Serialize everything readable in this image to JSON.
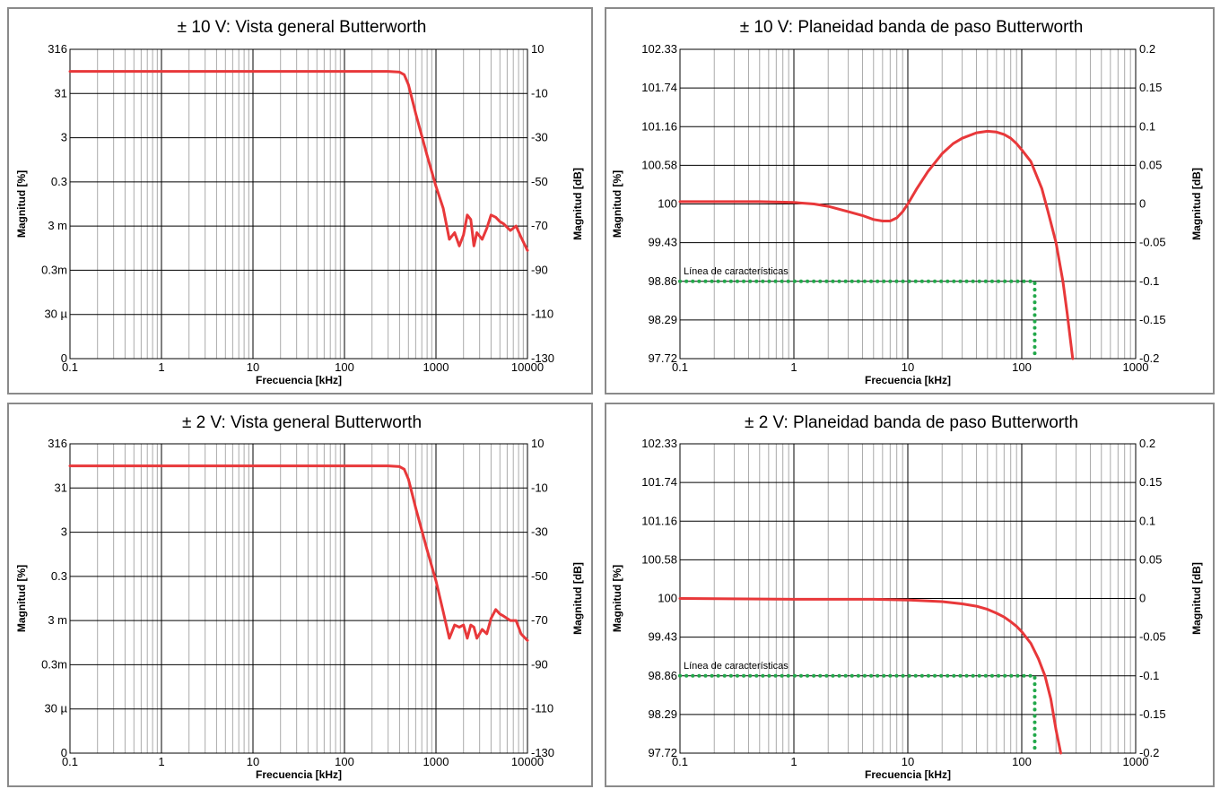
{
  "colors": {
    "response": "#e8383a",
    "characteristic": "#22a84a",
    "grid_major": "#000000",
    "grid_minor": "#aaaaaa"
  },
  "chart_data": [
    {
      "type": "line",
      "title": "± 10 V: Vista general Butterworth",
      "xlabel": "Frecuencia [kHz]",
      "ylabel": "Magnitud [%]",
      "y2label": "Magnitud [dB]",
      "x_scale": "log",
      "xlim": [
        0.1,
        10000
      ],
      "xticks": [
        "0.1",
        "1",
        "10",
        "100",
        "1000",
        "10000"
      ],
      "ylim_db": [
        -130,
        10
      ],
      "yticks_left": [
        "316",
        "31",
        "3",
        "0.3",
        "3 m",
        "0.3m",
        "30 µ",
        "0"
      ],
      "yticks_right": [
        "10",
        "-10",
        "-30",
        "-50",
        "-70",
        "-90",
        "-110",
        "-130"
      ],
      "grid": true,
      "series": [
        {
          "x": [
            0.1,
            1,
            10,
            100,
            300,
            400,
            450,
            500,
            600,
            800,
            1000,
            1200,
            1400,
            1600,
            1800,
            2000,
            2200,
            2400,
            2600,
            2800,
            3200,
            3600,
            4000,
            4500,
            5000,
            5500,
            6500,
            7500,
            8500,
            10000
          ],
          "y": [
            0,
            0,
            0,
            0,
            0,
            -0.3,
            -1.5,
            -6,
            -19,
            -38,
            -52,
            -62,
            -76,
            -73,
            -79,
            -74,
            -65,
            -67,
            -79,
            -73,
            -76,
            -71,
            -65,
            -66,
            -68,
            -69,
            -72,
            -70,
            -75,
            -81
          ]
        }
      ]
    },
    {
      "type": "line",
      "title": "± 10 V: Planeidad banda de paso Butterworth",
      "xlabel": "Frecuencia [kHz]",
      "ylabel": "Magnitud [%]",
      "y2label": "Magnitud [dB]",
      "x_scale": "log",
      "xlim": [
        0.1,
        1000
      ],
      "xticks": [
        "0.1",
        "1",
        "10",
        "100",
        "1000"
      ],
      "ylim_db": [
        -0.2,
        0.2
      ],
      "yticks_left": [
        "102.33",
        "101.74",
        "101.16",
        "100.58",
        "100",
        "99.43",
        "98.86",
        "98.29",
        "97.72"
      ],
      "yticks_right": [
        "0.2",
        "0.15",
        "0.1",
        "0.05",
        "0",
        "-0.05",
        "-0.1",
        "-0.15",
        "-0.2"
      ],
      "grid": true,
      "annotation": "Línea de características",
      "characteristic_line": {
        "db": -0.1,
        "f_khz": 130
      },
      "series": [
        {
          "x": [
            0.1,
            0.5,
            1,
            1.5,
            2,
            3,
            4,
            5,
            6,
            7,
            8,
            9,
            10,
            12,
            15,
            20,
            25,
            30,
            40,
            50,
            60,
            70,
            80,
            90,
            100,
            120,
            150,
            170,
            200,
            230,
            250,
            280
          ],
          "y": [
            0.003,
            0.003,
            0.002,
            0.0,
            -0.003,
            -0.01,
            -0.015,
            -0.02,
            -0.022,
            -0.022,
            -0.018,
            -0.01,
            0.0,
            0.02,
            0.042,
            0.065,
            0.078,
            0.085,
            0.092,
            0.094,
            0.093,
            0.09,
            0.085,
            0.078,
            0.07,
            0.055,
            0.02,
            -0.01,
            -0.05,
            -0.1,
            -0.14,
            -0.2
          ]
        }
      ]
    },
    {
      "type": "line",
      "title": "± 2 V: Vista general Butterworth",
      "xlabel": "Frecuencia [kHz]",
      "ylabel": "Magnitud [%]",
      "y2label": "Magnitud [dB]",
      "x_scale": "log",
      "xlim": [
        0.1,
        10000
      ],
      "xticks": [
        "0.1",
        "1",
        "10",
        "100",
        "1000",
        "10000"
      ],
      "ylim_db": [
        -130,
        10
      ],
      "yticks_left": [
        "316",
        "31",
        "3",
        "0.3",
        "3 m",
        "0.3m",
        "30 µ",
        "0"
      ],
      "yticks_right": [
        "10",
        "-10",
        "-30",
        "-50",
        "-70",
        "-90",
        "-110",
        "-130"
      ],
      "grid": true,
      "series": [
        {
          "x": [
            0.1,
            1,
            10,
            100,
            300,
            400,
            450,
            500,
            600,
            800,
            1000,
            1200,
            1400,
            1600,
            1800,
            2000,
            2200,
            2400,
            2600,
            2800,
            3200,
            3600,
            4000,
            4500,
            5000,
            5500,
            6500,
            7500,
            8500,
            10000
          ],
          "y": [
            0,
            0,
            0,
            0,
            0,
            -0.3,
            -1.5,
            -6,
            -19,
            -38,
            -52,
            -66,
            -78,
            -72,
            -73,
            -72,
            -78,
            -72,
            -73,
            -78,
            -74,
            -76,
            -69,
            -65,
            -67,
            -68,
            -70,
            -70,
            -76,
            -79
          ]
        }
      ]
    },
    {
      "type": "line",
      "title": "± 2 V: Planeidad banda de paso Butterworth",
      "xlabel": "Frecuencia [kHz]",
      "ylabel": "Magnitud [%]",
      "y2label": "Magnitud [dB]",
      "x_scale": "log",
      "xlim": [
        0.1,
        1000
      ],
      "xticks": [
        "0.1",
        "1",
        "10",
        "100",
        "1000"
      ],
      "ylim_db": [
        -0.2,
        0.2
      ],
      "yticks_left": [
        "102.33",
        "101.74",
        "101.16",
        "100.58",
        "100",
        "99.43",
        "98.86",
        "98.29",
        "97.72"
      ],
      "yticks_right": [
        "0.2",
        "0.15",
        "0.1",
        "0.05",
        "0",
        "-0.05",
        "-0.1",
        "-0.15",
        "-0.2"
      ],
      "grid": true,
      "annotation": "Línea de características",
      "characteristic_line": {
        "db": -0.1,
        "f_khz": 130
      },
      "series": [
        {
          "x": [
            0.1,
            1,
            5,
            10,
            20,
            30,
            40,
            50,
            60,
            70,
            80,
            90,
            100,
            120,
            140,
            160,
            180,
            200,
            220
          ],
          "y": [
            0.0,
            -0.001,
            -0.001,
            -0.002,
            -0.004,
            -0.007,
            -0.01,
            -0.014,
            -0.019,
            -0.024,
            -0.03,
            -0.036,
            -0.043,
            -0.058,
            -0.078,
            -0.1,
            -0.13,
            -0.17,
            -0.2
          ]
        }
      ]
    }
  ]
}
